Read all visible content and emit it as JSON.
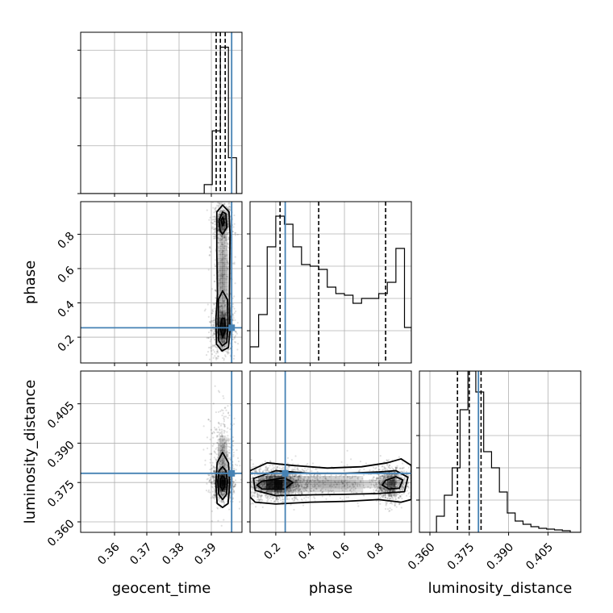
{
  "chart_data": {
    "type": "corner",
    "parameters": [
      "geocent_time",
      "phase",
      "luminosity_distance"
    ],
    "truth": {
      "geocent_time": 0.3963,
      "phase": 0.255,
      "luminosity_distance": 0.3785
    },
    "colors": {
      "truth": "#4682b4",
      "hist": "#000000",
      "grid": "#b0b0b0",
      "points": "#000000",
      "density": "#000000"
    },
    "grid": true,
    "panels": {
      "geocent_time_hist": {
        "xlim": [
          0.3495,
          0.3995
        ],
        "ylim": [
          0,
          2.7
        ],
        "x_ticks": [
          0.36,
          0.37,
          0.38,
          0.39
        ],
        "bin_edges": [
          0.3878,
          0.3903,
          0.3928,
          0.3953,
          0.3978
        ],
        "counts": [
          0.15,
          1.05,
          2.45,
          0.6
        ],
        "quantiles": [
          0.3915,
          0.3928,
          0.3943
        ],
        "y_tick_marks": [
          0,
          0.8,
          1.6,
          2.4
        ]
      },
      "phase_hist": {
        "xlim": [
          0.05,
          0.99
        ],
        "ylim": [
          0,
          1.0
        ],
        "x_ticks": [
          0.2,
          0.4,
          0.6,
          0.8
        ],
        "bin_edges": [
          0.05,
          0.1,
          0.15,
          0.2,
          0.25,
          0.3,
          0.35,
          0.4,
          0.45,
          0.5,
          0.55,
          0.6,
          0.65,
          0.7,
          0.75,
          0.8,
          0.85,
          0.9,
          0.95,
          0.99
        ],
        "counts": [
          0.1,
          0.3,
          0.72,
          0.91,
          0.86,
          0.72,
          0.61,
          0.6,
          0.58,
          0.47,
          0.43,
          0.42,
          0.37,
          0.4,
          0.4,
          0.43,
          0.5,
          0.71,
          0.22
        ],
        "quantiles": [
          0.225,
          0.45,
          0.84
        ],
        "y_tick_marks": [
          0.2,
          0.4,
          0.6,
          0.8
        ]
      },
      "luminosity_distance_hist": {
        "xlim": [
          0.356,
          0.4175
        ],
        "ylim": [
          0,
          1.0
        ],
        "x_ticks": [
          0.36,
          0.375,
          0.39,
          0.405
        ],
        "x_tick_labels": [
          "0.360",
          "0.375",
          "0.390",
          "0.405"
        ],
        "bin_edges": [
          0.3625,
          0.3655,
          0.3685,
          0.3715,
          0.3745,
          0.3775,
          0.3805,
          0.3835,
          0.3865,
          0.3895,
          0.3925,
          0.3955,
          0.3985,
          0.4015,
          0.4045,
          0.4075,
          0.4105,
          0.4135
        ],
        "counts": [
          0.1,
          0.23,
          0.4,
          0.76,
          1.0,
          0.87,
          0.5,
          0.4,
          0.25,
          0.12,
          0.07,
          0.05,
          0.035,
          0.025,
          0.02,
          0.015,
          0.01
        ],
        "quantiles": [
          0.3705,
          0.375,
          0.3795
        ],
        "y_tick_marks": [
          0.2,
          0.4,
          0.6,
          0.8
        ]
      },
      "phase_vs_geocent_time": {
        "xlim": [
          0.3495,
          0.3995
        ],
        "ylim": [
          0.05,
          0.99
        ],
        "y_ticks": [
          0.2,
          0.4,
          0.6,
          0.8
        ],
        "y_tick_labels": [
          "0.2",
          "0.4",
          "0.6",
          "0.8"
        ],
        "density_blobs": [
          {
            "x": 0.3935,
            "y": 0.25,
            "sx": 0.0011,
            "sy": 0.055,
            "w": 1.0
          },
          {
            "x": 0.3935,
            "y": 0.87,
            "sx": 0.0009,
            "sy": 0.035,
            "w": 0.75
          },
          {
            "x": 0.3935,
            "y": 0.55,
            "sx": 0.0012,
            "sy": 0.2,
            "w": 0.45
          }
        ],
        "contours": [
          [
            [
              0.3933,
              0.12
            ],
            [
              0.3953,
              0.14
            ],
            [
              0.3958,
              0.24
            ],
            [
              0.3956,
              0.4
            ],
            [
              0.3957,
              0.6
            ],
            [
              0.3958,
              0.8
            ],
            [
              0.3955,
              0.93
            ],
            [
              0.3935,
              0.97
            ],
            [
              0.3917,
              0.93
            ],
            [
              0.3917,
              0.7
            ],
            [
              0.3919,
              0.45
            ],
            [
              0.3914,
              0.3
            ],
            [
              0.3916,
              0.16
            ]
          ],
          [
            [
              0.3934,
              0.15
            ],
            [
              0.3948,
              0.17
            ],
            [
              0.3952,
              0.28
            ],
            [
              0.395,
              0.42
            ],
            [
              0.3935,
              0.47
            ],
            [
              0.3922,
              0.42
            ],
            [
              0.3921,
              0.28
            ],
            [
              0.3923,
              0.18
            ]
          ],
          [
            [
              0.3935,
              0.2
            ],
            [
              0.3944,
              0.24
            ],
            [
              0.3941,
              0.31
            ],
            [
              0.3933,
              0.31
            ],
            [
              0.3927,
              0.25
            ]
          ],
          [
            [
              0.3935,
              0.8
            ],
            [
              0.3948,
              0.84
            ],
            [
              0.3945,
              0.92
            ],
            [
              0.3935,
              0.93
            ],
            [
              0.3924,
              0.88
            ],
            [
              0.3927,
              0.82
            ]
          ],
          [
            [
              0.3935,
              0.85
            ],
            [
              0.394,
              0.87
            ],
            [
              0.3936,
              0.9
            ],
            [
              0.393,
              0.88
            ]
          ]
        ]
      },
      "luminosity_distance_vs_geocent_time": {
        "xlim": [
          0.3495,
          0.3995
        ],
        "ylim": [
          0.356,
          0.4175
        ],
        "y_ticks": [
          0.36,
          0.375,
          0.39,
          0.405
        ],
        "y_tick_labels": [
          "0.360",
          "0.375",
          "0.390",
          "0.405"
        ],
        "density_blobs": [
          {
            "x": 0.3935,
            "y": 0.375,
            "sx": 0.001,
            "sy": 0.002,
            "w": 1.0
          },
          {
            "x": 0.3935,
            "y": 0.385,
            "sx": 0.0012,
            "sy": 0.006,
            "w": 0.35
          }
        ],
        "contours": [
          [
            [
              0.3935,
              0.3655
            ],
            [
              0.3952,
              0.367
            ],
            [
              0.3957,
              0.3745
            ],
            [
              0.3953,
              0.3825
            ],
            [
              0.3935,
              0.3865
            ],
            [
              0.3918,
              0.3825
            ],
            [
              0.3914,
              0.3745
            ],
            [
              0.3918,
              0.367
            ]
          ],
          [
            [
              0.3935,
              0.3685
            ],
            [
              0.3947,
              0.3705
            ],
            [
              0.395,
              0.3755
            ],
            [
              0.3945,
              0.3795
            ],
            [
              0.3935,
              0.381
            ],
            [
              0.3924,
              0.3795
            ],
            [
              0.392,
              0.3755
            ],
            [
              0.3923,
              0.3705
            ]
          ],
          [
            [
              0.3935,
              0.372
            ],
            [
              0.3941,
              0.3735
            ],
            [
              0.3942,
              0.3765
            ],
            [
              0.3935,
              0.3775
            ],
            [
              0.3929,
              0.3765
            ],
            [
              0.3928,
              0.3735
            ]
          ]
        ]
      },
      "luminosity_distance_vs_phase": {
        "xlim": [
          0.05,
          0.99
        ],
        "ylim": [
          0.356,
          0.4175
        ],
        "density_blobs": [
          {
            "x": 0.2,
            "y": 0.3745,
            "sx": 0.06,
            "sy": 0.002,
            "w": 1.0
          },
          {
            "x": 0.5,
            "y": 0.3745,
            "sx": 0.2,
            "sy": 0.0022,
            "w": 0.35
          },
          {
            "x": 0.87,
            "y": 0.3745,
            "sx": 0.03,
            "sy": 0.0022,
            "w": 0.6
          }
        ],
        "contours": [
          [
            [
              0.05,
              0.3795
            ],
            [
              0.15,
              0.3825
            ],
            [
              0.3,
              0.3815
            ],
            [
              0.5,
              0.3805
            ],
            [
              0.7,
              0.381
            ],
            [
              0.85,
              0.3825
            ],
            [
              0.93,
              0.384
            ],
            [
              0.99,
              0.3815
            ],
            [
              0.99,
              0.3685
            ],
            [
              0.93,
              0.3675
            ],
            [
              0.8,
              0.3685
            ],
            [
              0.6,
              0.3678
            ],
            [
              0.4,
              0.3675
            ],
            [
              0.2,
              0.3668
            ],
            [
              0.08,
              0.3675
            ],
            [
              0.05,
              0.3695
            ]
          ],
          [
            [
              0.07,
              0.3765
            ],
            [
              0.2,
              0.3795
            ],
            [
              0.4,
              0.3785
            ],
            [
              0.6,
              0.3785
            ],
            [
              0.8,
              0.379
            ],
            [
              0.9,
              0.3795
            ],
            [
              0.97,
              0.377
            ],
            [
              0.95,
              0.3715
            ],
            [
              0.8,
              0.3708
            ],
            [
              0.6,
              0.3705
            ],
            [
              0.4,
              0.3703
            ],
            [
              0.2,
              0.37
            ],
            [
              0.08,
              0.372
            ]
          ],
          [
            [
              0.12,
              0.3755
            ],
            [
              0.25,
              0.3768
            ],
            [
              0.3,
              0.375
            ],
            [
              0.25,
              0.3725
            ],
            [
              0.12,
              0.3725
            ],
            [
              0.09,
              0.374
            ]
          ],
          [
            [
              0.84,
              0.3758
            ],
            [
              0.9,
              0.3772
            ],
            [
              0.94,
              0.376
            ],
            [
              0.92,
              0.3728
            ],
            [
              0.86,
              0.3725
            ],
            [
              0.82,
              0.374
            ]
          ]
        ]
      }
    }
  }
}
